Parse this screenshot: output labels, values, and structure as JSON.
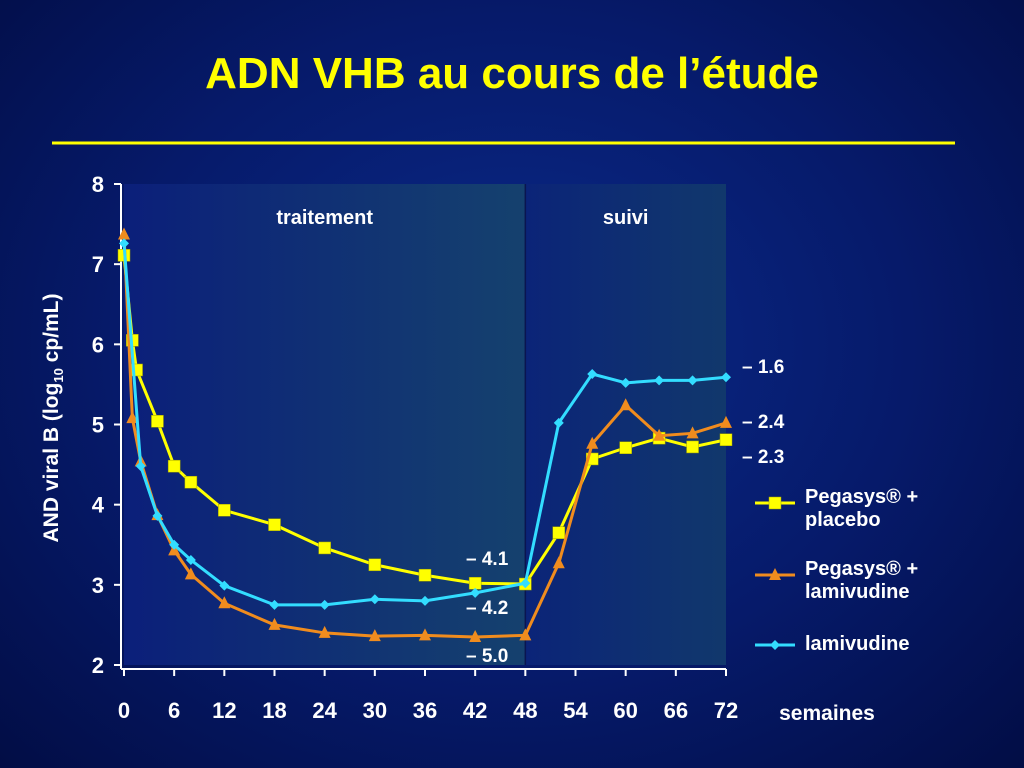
{
  "chart_data": {
    "type": "line",
    "title": "ADN VHB au cours de l’étude",
    "y_label": [
      "AND viral B (log",
      "10",
      " cp/mL)"
    ],
    "x_label": "semaines",
    "xlim": [
      0,
      72
    ],
    "xticks": [
      0,
      6,
      12,
      18,
      24,
      30,
      36,
      42,
      48,
      54,
      60,
      66,
      72
    ],
    "ylim": [
      2,
      8
    ],
    "yticks": [
      2,
      3,
      4,
      5,
      6,
      7,
      8
    ],
    "regions": [
      {
        "label": "traitement",
        "range": [
          0,
          48
        ]
      },
      {
        "label": "suivi",
        "range": [
          48,
          72
        ]
      }
    ],
    "annotations": [
      "– 1.6",
      "– 2.4",
      "– 2.3",
      "– 4.1",
      "– 4.2",
      "– 5.0"
    ],
    "series": [
      {
        "name": "Pegasys® + placebo",
        "color": "#ffff00",
        "marker": "square",
        "x": [
          0,
          1,
          1.5,
          4,
          6,
          8,
          12,
          18,
          24,
          30,
          36,
          42,
          48,
          52,
          56,
          60,
          64,
          68,
          72
        ],
        "values": [
          7.11,
          6.05,
          5.68,
          5.04,
          4.48,
          4.28,
          3.93,
          3.75,
          3.46,
          3.25,
          3.12,
          3.02,
          3.01,
          3.65,
          4.57,
          4.71,
          4.83,
          4.72,
          4.81
        ]
      },
      {
        "name": "Pegasys® + lamivudine",
        "color": "#f08c1e",
        "marker": "triangle",
        "x": [
          0,
          1,
          2,
          4,
          6,
          8,
          12,
          18,
          24,
          30,
          36,
          42,
          48,
          52,
          56,
          60,
          64,
          68,
          72
        ],
        "values": [
          7.37,
          5.08,
          4.54,
          3.87,
          3.43,
          3.13,
          2.77,
          2.5,
          2.4,
          2.36,
          2.37,
          2.35,
          2.37,
          3.27,
          4.76,
          5.24,
          4.86,
          4.89,
          5.02
        ]
      },
      {
        "name": "lamivudine",
        "color": "#33ddff",
        "marker": "diamond",
        "x": [
          0,
          2,
          4,
          6,
          8,
          12,
          18,
          24,
          30,
          36,
          42,
          48,
          52,
          56,
          60,
          64,
          68,
          72
        ],
        "values": [
          7.26,
          4.48,
          3.86,
          3.5,
          3.31,
          2.99,
          2.75,
          2.75,
          2.82,
          2.8,
          2.9,
          3.02,
          5.02,
          5.63,
          5.52,
          5.55,
          5.55,
          5.59
        ]
      }
    ]
  }
}
